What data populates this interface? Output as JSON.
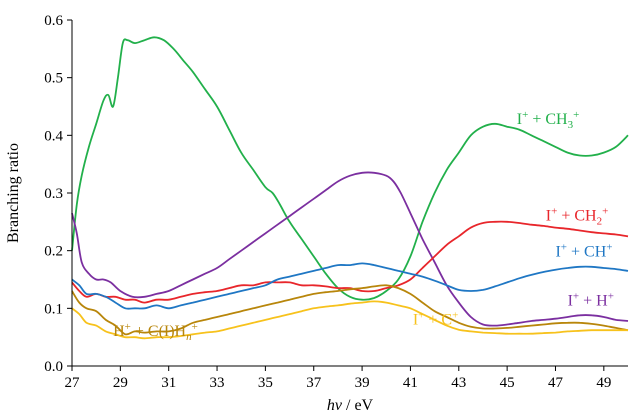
{
  "chart_data": {
    "type": "line",
    "title": "",
    "xlabel": {
      "var": "hν",
      "sep": " / ",
      "unit": "eV"
    },
    "ylabel": "Branching ratio",
    "xlim": [
      27,
      50
    ],
    "ylim": [
      0,
      0.6
    ],
    "xticks": [
      27,
      29,
      31,
      33,
      35,
      37,
      39,
      41,
      43,
      45,
      47,
      49
    ],
    "yticks": [
      0.0,
      0.1,
      0.2,
      0.3,
      0.4,
      0.5,
      0.6
    ],
    "ytick_labels": [
      "0.0",
      "0.1",
      "0.2",
      "0.3",
      "0.4",
      "0.5",
      "0.6"
    ],
    "grid": false,
    "legend": "inline labels",
    "series": [
      {
        "key": "ch3",
        "color": "#22b04b",
        "label_parts": [
          [
            "I",
            ""
          ],
          [
            "+",
            "sup"
          ],
          [
            " + CH",
            ""
          ],
          [
            "3",
            "sub"
          ],
          [
            "+",
            "sup"
          ]
        ],
        "label_at": [
          45.4,
          0.42
        ],
        "x": [
          27.0,
          27.2,
          27.4,
          27.7,
          28.0,
          28.3,
          28.5,
          28.7,
          28.9,
          29.1,
          29.3,
          29.6,
          30.0,
          30.4,
          30.8,
          31.2,
          31.6,
          32.0,
          32.5,
          33.0,
          33.5,
          34.0,
          34.5,
          35.0,
          35.3,
          35.6,
          36.0,
          36.5,
          37.0,
          37.5,
          38.0,
          38.5,
          39.0,
          39.5,
          40.0,
          40.5,
          41.0,
          41.5,
          42.0,
          42.5,
          43.0,
          43.5,
          44.0,
          44.5,
          45.0,
          45.5,
          46.0,
          46.5,
          47.0,
          47.5,
          48.0,
          48.5,
          49.0,
          49.5,
          50.0
        ],
        "y": [
          0.2,
          0.28,
          0.33,
          0.38,
          0.42,
          0.46,
          0.47,
          0.45,
          0.5,
          0.56,
          0.565,
          0.56,
          0.565,
          0.57,
          0.565,
          0.55,
          0.53,
          0.51,
          0.48,
          0.45,
          0.41,
          0.37,
          0.34,
          0.31,
          0.3,
          0.28,
          0.25,
          0.22,
          0.19,
          0.16,
          0.135,
          0.12,
          0.115,
          0.118,
          0.13,
          0.15,
          0.19,
          0.25,
          0.3,
          0.34,
          0.37,
          0.4,
          0.415,
          0.42,
          0.415,
          0.41,
          0.4,
          0.39,
          0.38,
          0.37,
          0.365,
          0.365,
          0.37,
          0.38,
          0.4
        ]
      },
      {
        "key": "h",
        "color": "#7b2fa0",
        "label_parts": [
          [
            "I",
            ""
          ],
          [
            "+",
            "sup"
          ],
          [
            " + H",
            ""
          ],
          [
            "+",
            "sup"
          ]
        ],
        "label_at": [
          47.5,
          0.105
        ],
        "x": [
          27.0,
          27.2,
          27.4,
          27.7,
          28.0,
          28.3,
          28.6,
          29.0,
          29.5,
          30.0,
          30.5,
          31.0,
          31.5,
          32.0,
          32.5,
          33.0,
          33.5,
          34.0,
          34.5,
          35.0,
          35.5,
          36.0,
          36.5,
          37.0,
          37.5,
          38.0,
          38.5,
          39.0,
          39.5,
          40.0,
          40.3,
          40.6,
          41.0,
          41.5,
          42.0,
          42.5,
          43.0,
          43.5,
          44.0,
          44.5,
          45.0,
          45.5,
          46.0,
          46.5,
          47.0,
          47.5,
          48.0,
          48.5,
          49.0,
          49.5,
          50.0
        ],
        "y": [
          0.265,
          0.23,
          0.18,
          0.16,
          0.15,
          0.15,
          0.145,
          0.13,
          0.12,
          0.12,
          0.125,
          0.13,
          0.14,
          0.15,
          0.16,
          0.17,
          0.185,
          0.2,
          0.215,
          0.23,
          0.245,
          0.26,
          0.275,
          0.29,
          0.305,
          0.32,
          0.33,
          0.335,
          0.335,
          0.33,
          0.32,
          0.3,
          0.265,
          0.22,
          0.18,
          0.14,
          0.11,
          0.085,
          0.072,
          0.07,
          0.072,
          0.075,
          0.078,
          0.08,
          0.082,
          0.085,
          0.088,
          0.088,
          0.085,
          0.08,
          0.078
        ]
      },
      {
        "key": "ch2",
        "color": "#e8262b",
        "label_parts": [
          [
            "I",
            ""
          ],
          [
            "+",
            "sup"
          ],
          [
            " + CH",
            ""
          ],
          [
            "2",
            "sub"
          ],
          [
            "+",
            "sup"
          ]
        ],
        "label_at": [
          46.6,
          0.252
        ],
        "x": [
          27.0,
          27.3,
          27.6,
          28.0,
          28.4,
          28.8,
          29.2,
          29.6,
          30.0,
          30.5,
          31.0,
          31.5,
          32.0,
          32.5,
          33.0,
          33.5,
          34.0,
          34.5,
          35.0,
          35.5,
          36.0,
          36.5,
          37.0,
          37.5,
          38.0,
          38.5,
          39.0,
          39.5,
          40.0,
          40.5,
          41.0,
          41.5,
          42.0,
          42.5,
          43.0,
          43.5,
          44.0,
          44.5,
          45.0,
          45.5,
          46.0,
          46.5,
          47.0,
          47.5,
          48.0,
          48.5,
          49.0,
          49.5,
          50.0
        ],
        "y": [
          0.145,
          0.13,
          0.12,
          0.125,
          0.12,
          0.12,
          0.115,
          0.115,
          0.11,
          0.115,
          0.115,
          0.12,
          0.125,
          0.128,
          0.13,
          0.135,
          0.14,
          0.14,
          0.145,
          0.145,
          0.145,
          0.14,
          0.14,
          0.138,
          0.135,
          0.135,
          0.13,
          0.13,
          0.135,
          0.14,
          0.15,
          0.17,
          0.19,
          0.21,
          0.225,
          0.24,
          0.248,
          0.25,
          0.25,
          0.248,
          0.245,
          0.243,
          0.24,
          0.238,
          0.235,
          0.232,
          0.23,
          0.228,
          0.225
        ]
      },
      {
        "key": "ch",
        "color": "#1f77c4",
        "label_parts": [
          [
            "I",
            ""
          ],
          [
            "+",
            "sup"
          ],
          [
            " + CH",
            ""
          ],
          [
            "+",
            "sup"
          ]
        ],
        "label_at": [
          47.0,
          0.19
        ],
        "x": [
          27.0,
          27.3,
          27.6,
          28.0,
          28.4,
          28.8,
          29.2,
          29.6,
          30.0,
          30.5,
          31.0,
          31.5,
          32.0,
          32.5,
          33.0,
          33.5,
          34.0,
          34.5,
          35.0,
          35.5,
          36.0,
          36.5,
          37.0,
          37.5,
          38.0,
          38.5,
          39.0,
          39.5,
          40.0,
          40.5,
          41.0,
          41.5,
          42.0,
          42.5,
          43.0,
          43.5,
          44.0,
          44.5,
          45.0,
          45.5,
          46.0,
          46.5,
          47.0,
          47.5,
          48.0,
          48.5,
          49.0,
          49.5,
          50.0
        ],
        "y": [
          0.15,
          0.14,
          0.125,
          0.125,
          0.12,
          0.11,
          0.1,
          0.1,
          0.1,
          0.105,
          0.1,
          0.105,
          0.11,
          0.115,
          0.12,
          0.125,
          0.13,
          0.135,
          0.14,
          0.15,
          0.155,
          0.16,
          0.165,
          0.17,
          0.175,
          0.175,
          0.178,
          0.175,
          0.17,
          0.165,
          0.16,
          0.155,
          0.148,
          0.14,
          0.132,
          0.13,
          0.132,
          0.138,
          0.145,
          0.152,
          0.158,
          0.163,
          0.167,
          0.17,
          0.172,
          0.172,
          0.17,
          0.168,
          0.165
        ]
      },
      {
        "key": "hc",
        "color": "#b8860b",
        "label_parts": [
          [
            "H",
            ""
          ],
          [
            "+",
            "sup"
          ],
          [
            " + C(I)H",
            ""
          ],
          [
            "n",
            "isub"
          ],
          [
            "+",
            "sup"
          ]
        ],
        "label_at": [
          28.7,
          0.052
        ],
        "label_anchor": "start",
        "x": [
          27.0,
          27.3,
          27.6,
          28.0,
          28.4,
          28.8,
          29.2,
          29.6,
          30.0,
          30.5,
          31.0,
          31.5,
          32.0,
          32.5,
          33.0,
          33.5,
          34.0,
          34.5,
          35.0,
          35.5,
          36.0,
          36.5,
          37.0,
          37.5,
          38.0,
          38.5,
          39.0,
          39.5,
          40.0,
          40.5,
          41.0,
          41.5,
          42.0,
          42.5,
          43.0,
          43.5,
          44.0,
          44.5,
          45.0,
          45.5,
          46.0,
          46.5,
          47.0,
          47.5,
          48.0,
          48.5,
          49.0,
          49.5,
          50.0
        ],
        "y": [
          0.13,
          0.11,
          0.1,
          0.095,
          0.08,
          0.07,
          0.055,
          0.06,
          0.058,
          0.06,
          0.06,
          0.065,
          0.075,
          0.08,
          0.085,
          0.09,
          0.095,
          0.1,
          0.105,
          0.11,
          0.115,
          0.12,
          0.125,
          0.128,
          0.13,
          0.133,
          0.135,
          0.138,
          0.14,
          0.135,
          0.125,
          0.11,
          0.095,
          0.085,
          0.075,
          0.068,
          0.065,
          0.065,
          0.066,
          0.068,
          0.07,
          0.072,
          0.074,
          0.075,
          0.075,
          0.073,
          0.07,
          0.066,
          0.062
        ]
      },
      {
        "key": "c",
        "color": "#f7c21c",
        "label_parts": [
          [
            "I",
            ""
          ],
          [
            "+",
            "sup"
          ],
          [
            " + C",
            ""
          ],
          [
            "+",
            "sup"
          ]
        ],
        "label_at": [
          41.1,
          0.072
        ],
        "label_anchor": "start",
        "x": [
          27.0,
          27.3,
          27.6,
          28.0,
          28.4,
          28.8,
          29.2,
          29.6,
          30.0,
          30.5,
          31.0,
          31.5,
          32.0,
          32.5,
          33.0,
          33.5,
          34.0,
          34.5,
          35.0,
          35.5,
          36.0,
          36.5,
          37.0,
          37.5,
          38.0,
          38.5,
          39.0,
          39.5,
          40.0,
          40.5,
          41.0,
          41.5,
          42.0,
          42.5,
          43.0,
          43.5,
          44.0,
          44.5,
          45.0,
          45.5,
          46.0,
          46.5,
          47.0,
          47.5,
          48.0,
          48.5,
          49.0,
          49.5,
          50.0
        ],
        "y": [
          0.1,
          0.09,
          0.075,
          0.07,
          0.06,
          0.055,
          0.05,
          0.05,
          0.048,
          0.05,
          0.05,
          0.052,
          0.055,
          0.058,
          0.06,
          0.065,
          0.07,
          0.075,
          0.08,
          0.085,
          0.09,
          0.095,
          0.1,
          0.103,
          0.105,
          0.108,
          0.11,
          0.112,
          0.11,
          0.105,
          0.1,
          0.09,
          0.08,
          0.07,
          0.063,
          0.06,
          0.058,
          0.057,
          0.056,
          0.056,
          0.056,
          0.057,
          0.058,
          0.06,
          0.061,
          0.062,
          0.062,
          0.062,
          0.062
        ]
      }
    ]
  }
}
